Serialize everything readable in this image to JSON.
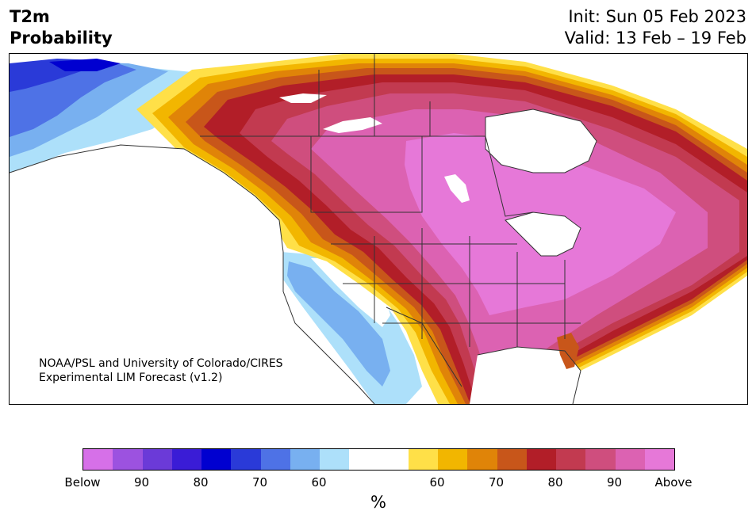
{
  "title": {
    "line1": "T2m",
    "line2": "Probability"
  },
  "dates": {
    "init": "Init: Sun 05 Feb 2023",
    "valid": "Valid: 13 Feb – 19 Feb"
  },
  "credit": {
    "line1": "NOAA/PSL and University of Colorado/CIRES",
    "line2": "Experimental LIM Forecast (v1.2)"
  },
  "colorbar": {
    "unit": "%",
    "colors": [
      "#d670e8",
      "#9c52e0",
      "#6b3ad8",
      "#3a1cd6",
      "#0000d0",
      "#2a3ad8",
      "#4e72e6",
      "#78b0f0",
      "#ade0fa",
      "#ffffff",
      "#ffffff",
      "#ffe048",
      "#f2b600",
      "#e08408",
      "#c8561a",
      "#b21e28",
      "#c23a50",
      "#cf4e7e",
      "#dc62b2",
      "#e678d8"
    ],
    "ticks": [
      "Below",
      "90",
      "80",
      "70",
      "60",
      "60",
      "70",
      "80",
      "90",
      "Above"
    ]
  },
  "map_palette": {
    "white": "#ffffff",
    "light_blue": "#ade0fa",
    "blue": "#78b0f0",
    "mid_blue": "#4e72e6",
    "deep_blue": "#2a3ad8",
    "navy": "#0000d0",
    "yellow": "#ffe048",
    "gold": "#f2b600",
    "orange": "#e08408",
    "dark_orange": "#c8561a",
    "red": "#b21e28",
    "crimson": "#c23a50",
    "rose": "#cf4e7e",
    "pink": "#dc62b2",
    "magenta": "#e678d8",
    "border": "#333333"
  }
}
